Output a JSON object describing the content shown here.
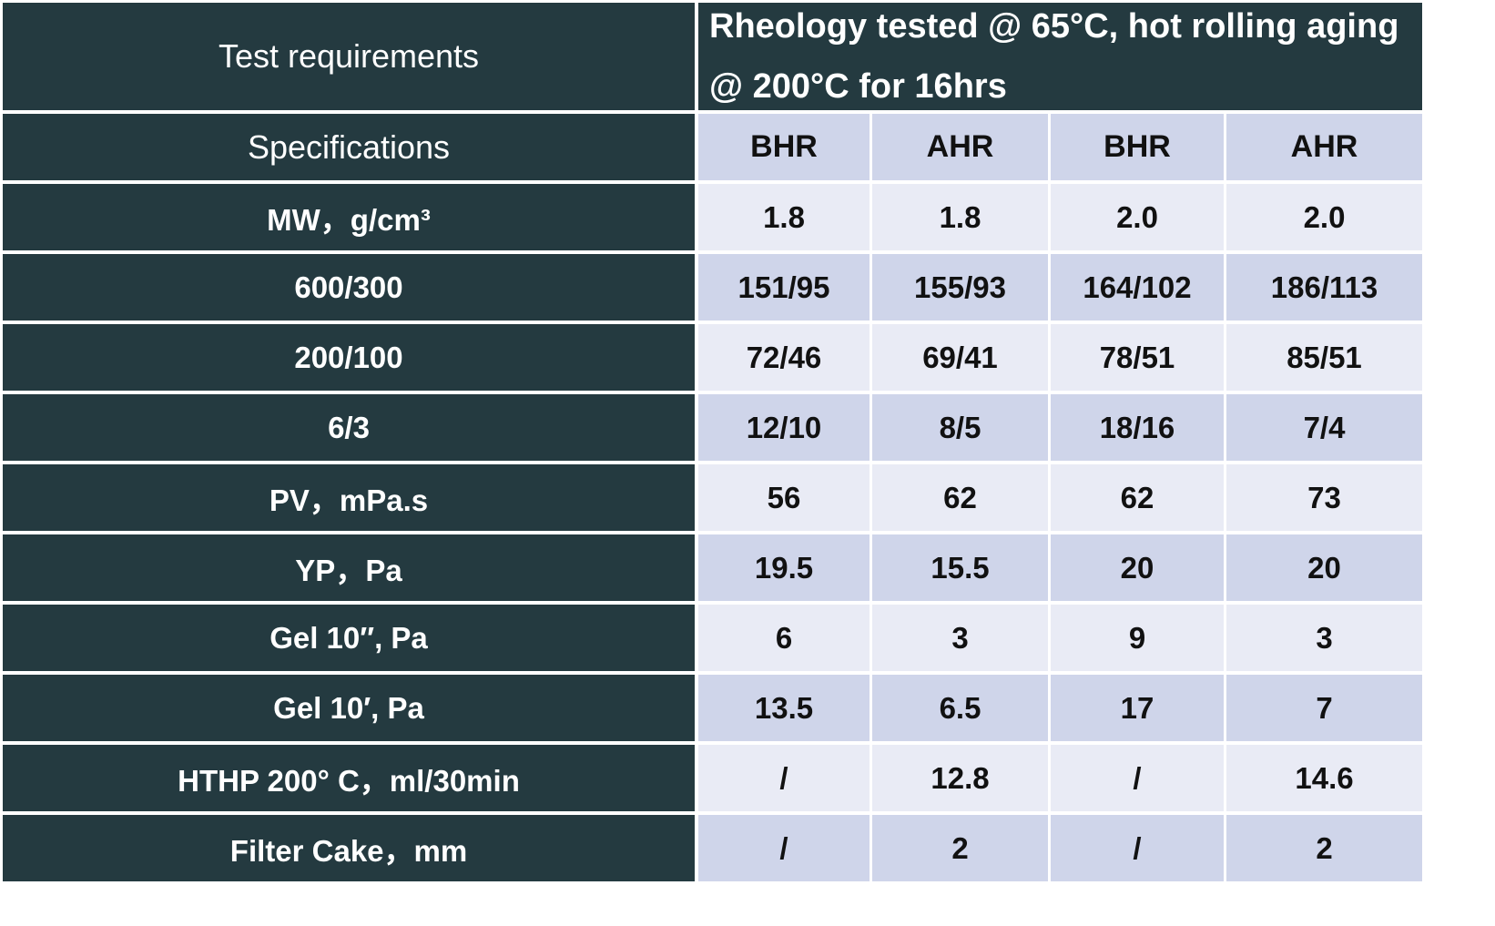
{
  "header": {
    "left": "Test requirements",
    "right": "Rheology tested @ 65°C, hot rolling aging @ 200°C for 16hrs"
  },
  "spec_header": "Specifications",
  "columns": [
    "BHR",
    "AHR",
    "BHR",
    "AHR"
  ],
  "rows": [
    {
      "label": "MW，g/cm³",
      "values": [
        "1.8",
        "1.8",
        "2.0",
        "2.0"
      ]
    },
    {
      "label": "600/300",
      "values": [
        "151/95",
        "155/93",
        "164/102",
        "186/113"
      ]
    },
    {
      "label": "200/100",
      "values": [
        "72/46",
        "69/41",
        "78/51",
        "85/51"
      ]
    },
    {
      "label": "6/3",
      "values": [
        "12/10",
        "8/5",
        "18/16",
        "7/4"
      ]
    },
    {
      "label": "PV，mPa.s",
      "values": [
        "56",
        "62",
        "62",
        "73"
      ]
    },
    {
      "label": "YP，Pa",
      "values": [
        "19.5",
        "15.5",
        "20",
        "20"
      ]
    },
    {
      "label": "Gel 10″, Pa",
      "values": [
        "6",
        "3",
        "9",
        "3"
      ]
    },
    {
      "label": "Gel 10′, Pa",
      "values": [
        "13.5",
        "6.5",
        "17",
        "7"
      ]
    },
    {
      "label": "HTHP 200° C，ml/30min",
      "values": [
        "/",
        "12.8",
        "/",
        "14.6"
      ]
    },
    {
      "label": "Filter Cake，mm",
      "values": [
        "/",
        "2",
        "/",
        "2"
      ]
    }
  ],
  "colors": {
    "dark": "#243a40",
    "light_row": "#e9ebf5",
    "mid_row": "#cfd5ea",
    "border": "#ffffff"
  }
}
